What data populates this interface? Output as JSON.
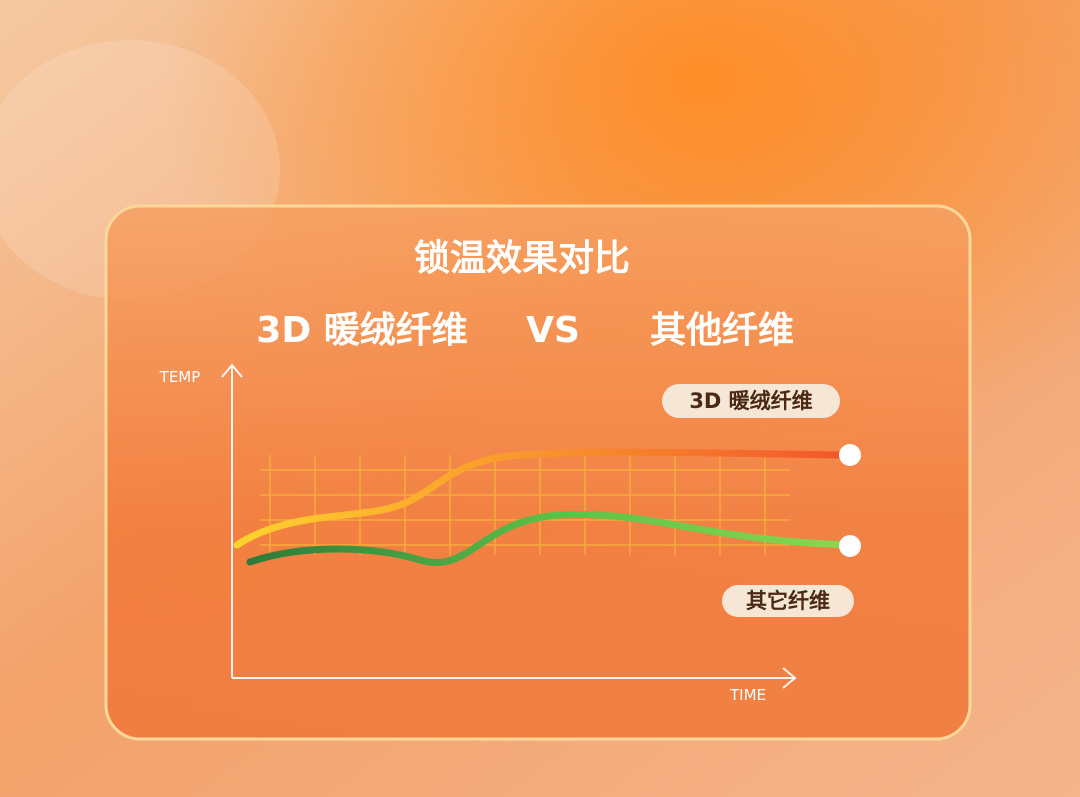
{
  "header": {
    "title": "锁温效果对比",
    "left": "3D 暖绒纤维",
    "vs": "VS",
    "right": "其他纤维"
  },
  "chart": {
    "y_axis_label": "TEMP",
    "x_axis_label": "TIME",
    "series_labels": [
      "3D 暖绒纤维",
      "其它纤维"
    ]
  }
}
